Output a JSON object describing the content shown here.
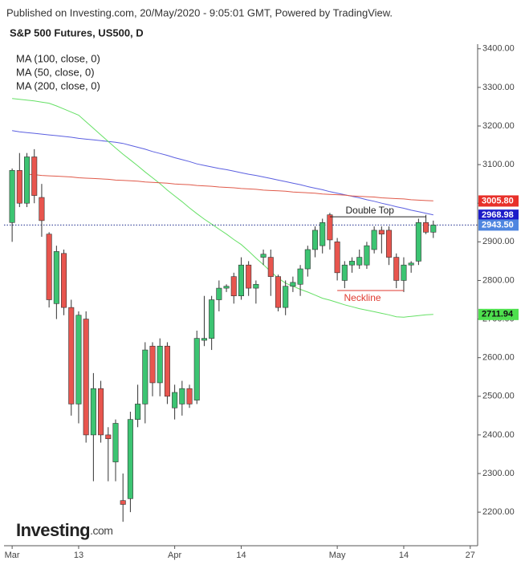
{
  "header": "Published on Investing.com, 20/May/2020 - 9:05:01 GMT, Powered by TradingView.",
  "logo": {
    "name": "Investing",
    "suffix": ".com"
  },
  "chart_data": {
    "type": "candlestick",
    "title": "S&P 500 Futures, US500, D",
    "up_color": "#3cc472",
    "down_color": "#e8554e",
    "xlim": [
      -1.1,
      63
    ],
    "xticks": [
      {
        "value": 0,
        "label": "Mar"
      },
      {
        "value": 9,
        "label": "13"
      },
      {
        "value": 22,
        "label": "Apr"
      },
      {
        "value": 31,
        "label": "14"
      },
      {
        "value": 44,
        "label": "May"
      },
      {
        "value": 53,
        "label": "14"
      },
      {
        "value": 62,
        "label": "27"
      }
    ],
    "ylim": [
      2113,
      3412
    ],
    "yticks": [
      {
        "value": 2200,
        "label": "2200.00"
      },
      {
        "value": 2300,
        "label": "2300.00"
      },
      {
        "value": 2400,
        "label": "2400.00"
      },
      {
        "value": 2500,
        "label": "2500.00"
      },
      {
        "value": 2600,
        "label": "2600.00"
      },
      {
        "value": 2700,
        "label": "2700.00"
      },
      {
        "value": 2800,
        "label": "2800.00"
      },
      {
        "value": 2900,
        "label": "2900.00"
      },
      {
        "value": 3000,
        "label": "3000.00"
      },
      {
        "value": 3100,
        "label": "3100.00"
      },
      {
        "value": 3200,
        "label": "3200.00"
      },
      {
        "value": 3300,
        "label": "3300.00"
      },
      {
        "value": 3400,
        "label": "3400.00"
      }
    ],
    "open": [
      2950,
      3085,
      3000,
      3120,
      3015,
      2920,
      2740,
      2870,
      2730,
      2480,
      2700,
      2400,
      2520,
      2400,
      2330,
      2230,
      2235,
      2440,
      2480,
      2630,
      2535,
      2630,
      2470,
      2480,
      2520,
      2490,
      2645,
      2650,
      2750,
      2780,
      2810,
      2760,
      2840,
      2780,
      2860,
      2860,
      2810,
      2730,
      2785,
      2790,
      2830,
      2880,
      2890,
      2970,
      2900,
      2800,
      2840,
      2840,
      2840,
      2880,
      2930,
      2930,
      2860,
      2800,
      2840,
      2850,
      2950,
      2925
    ],
    "high": [
      3090,
      3130,
      3130,
      3140,
      3050,
      2925,
      2890,
      2880,
      2750,
      2720,
      2720,
      2560,
      2540,
      2420,
      2440,
      2300,
      2460,
      2530,
      2640,
      2640,
      2650,
      2640,
      2530,
      2540,
      2530,
      2670,
      2760,
      2760,
      2800,
      2790,
      2820,
      2860,
      2850,
      2800,
      2880,
      2880,
      2815,
      2800,
      2810,
      2840,
      2890,
      2940,
      2960,
      2975,
      2910,
      2850,
      2860,
      2880,
      2900,
      2940,
      2940,
      2940,
      2870,
      2860,
      2850,
      2960,
      2970,
      2955
    ],
    "low": [
      2900,
      2990,
      2990,
      3000,
      2913,
      2730,
      2700,
      2710,
      2450,
      2430,
      2380,
      2280,
      2380,
      2280,
      2280,
      2175,
      2200,
      2420,
      2430,
      2500,
      2500,
      2480,
      2440,
      2450,
      2470,
      2480,
      2630,
      2620,
      2720,
      2770,
      2740,
      2750,
      2760,
      2740,
      2840,
      2760,
      2720,
      2710,
      2770,
      2760,
      2810,
      2860,
      2870,
      2880,
      2800,
      2780,
      2820,
      2830,
      2830,
      2870,
      2870,
      2840,
      2780,
      2770,
      2820,
      2840,
      2920,
      2910
    ],
    "close": [
      3085,
      3000,
      3120,
      3020,
      2955,
      2750,
      2875,
      2730,
      2480,
      2710,
      2400,
      2520,
      2400,
      2390,
      2430,
      2220,
      2440,
      2480,
      2620,
      2535,
      2630,
      2500,
      2510,
      2520,
      2480,
      2650,
      2650,
      2750,
      2780,
      2785,
      2760,
      2840,
      2780,
      2790,
      2868,
      2810,
      2730,
      2785,
      2795,
      2830,
      2880,
      2930,
      2950,
      2905,
      2820,
      2840,
      2850,
      2860,
      2890,
      2930,
      2920,
      2860,
      2800,
      2840,
      2845,
      2950,
      2925,
      2943.5
    ],
    "series": [
      {
        "name": "MA (100, close, 0)",
        "color": "#5b5fe0",
        "values": [
          3188,
          3185,
          3183,
          3181,
          3179,
          3177,
          3175,
          3173,
          3171,
          3168,
          3166,
          3164,
          3162,
          3160,
          3158,
          3155,
          3150,
          3145,
          3140,
          3134,
          3129,
          3124,
          3118,
          3113,
          3108,
          3102,
          3098,
          3094,
          3090,
          3087,
          3083,
          3079,
          3075,
          3072,
          3068,
          3064,
          3060,
          3056,
          3052,
          3048,
          3043,
          3039,
          3035,
          3030,
          3026,
          3022,
          3018,
          3014,
          3009,
          3005,
          3000,
          2996,
          2991,
          2987,
          2982,
          2978,
          2974,
          2970
        ]
      },
      {
        "name": "MA (50, close, 0)",
        "color": "#66e066",
        "values": [
          3271,
          3269,
          3267,
          3265,
          3262,
          3259,
          3252,
          3244,
          3236,
          3228,
          3211,
          3194,
          3177,
          3160,
          3143,
          3127,
          3112,
          3097,
          3081,
          3066,
          3051,
          3034,
          3019,
          3004,
          2988,
          2973,
          2959,
          2946,
          2933,
          2920,
          2906,
          2893,
          2876,
          2858,
          2841,
          2823,
          2806,
          2793,
          2785,
          2777,
          2770,
          2762,
          2754,
          2749,
          2743,
          2737,
          2732,
          2727,
          2723,
          2719,
          2715,
          2711,
          2706,
          2705,
          2707,
          2709,
          2711,
          2712
        ]
      },
      {
        "name": "MA (200, close, 0)",
        "color": "#e05a4a",
        "values": [
          null,
          null,
          3075,
          3074,
          3072,
          3071,
          3070,
          3069,
          3068,
          3066,
          3065,
          3064,
          3063,
          3062,
          3060,
          3059,
          3058,
          3057,
          3055,
          3054,
          3053,
          3052,
          3050,
          3049,
          3048,
          3046,
          3045,
          3044,
          3042,
          3041,
          3040,
          3038,
          3037,
          3036,
          3034,
          3033,
          3032,
          3031,
          3029,
          3028,
          3027,
          3026,
          3024,
          3023,
          3022,
          3021,
          3019,
          3018,
          3017,
          3016,
          3014,
          3013,
          3012,
          3011,
          3009,
          3008,
          3007,
          3006
        ]
      }
    ],
    "price_labels": [
      {
        "value": 3005.8,
        "label": "3005.80",
        "color": "#e8302a",
        "text_color": "#ffffff"
      },
      {
        "value": 2968.98,
        "label": "2968.98",
        "color": "#1c1cc8",
        "text_color": "#ffffff"
      },
      {
        "value": 2943.5,
        "label": "2943.50",
        "color": "#4f86e0",
        "text_color": "#ffffff"
      },
      {
        "value": 2711.94,
        "label": "2711.94",
        "color": "#4ee04e",
        "text_color": "#111111"
      }
    ],
    "last_price": 2943.5,
    "annotations": [
      {
        "text": "Double Top",
        "value": 2965,
        "from": 43,
        "to": 56,
        "color": "#222222",
        "position": "above"
      },
      {
        "text": "Neckline",
        "value": 2774,
        "from": 44,
        "to": 53,
        "color": "#e03a30",
        "position": "below"
      }
    ]
  }
}
